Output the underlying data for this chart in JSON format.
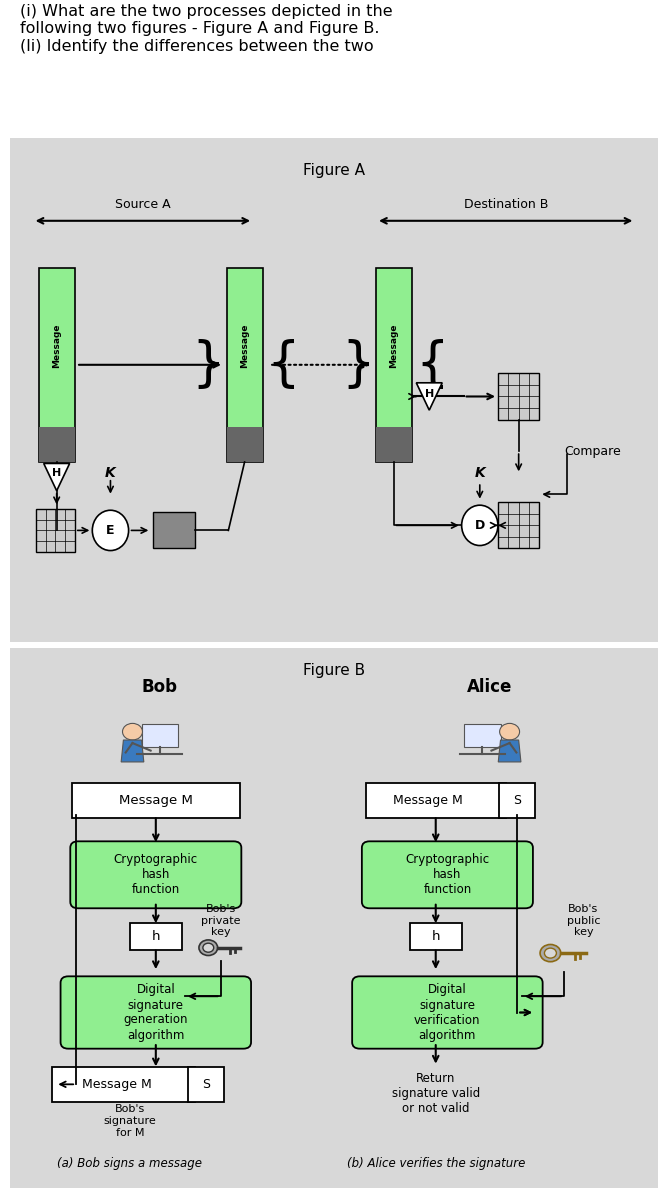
{
  "title_text": "(i) What are the two processes depicted in the\nfollowing two figures - Figure A and Figure B.\n(li) Identify the differences between the two",
  "fig_a_title": "Figure A",
  "fig_b_title": "Figure B",
  "source_label": "Source A",
  "dest_label": "Destination B",
  "compare_label": "Compare",
  "bob_label": "Bob",
  "alice_label": "Alice",
  "msg_m_label": "Message M",
  "msg_s_label": "S",
  "crypto_hash_label": "Cryptographic\nhash\nfunction",
  "h_label": "h",
  "bob_private_key": "Bob's\nprivate\nkey",
  "bob_public_key": "Bob's\npublic\nkey",
  "dig_sig_gen": "Digital\nsignature\ngeneration\nalgorithm",
  "dig_sig_ver": "Digital\nsignature\nverification\nalgorithm",
  "return_label": "Return\nsignature valid\nor not valid",
  "bobs_sig_label": "Bob's\nsignature\nfor M",
  "caption_a": "(a) Bob signs a message",
  "caption_b": "(b) Alice verifies the signature",
  "bg_panel": "#d8d8d8",
  "green_box": "#90EE90",
  "white": "#ffffff",
  "gray_dark": "#888888",
  "grid_color": "#bbbbbb"
}
